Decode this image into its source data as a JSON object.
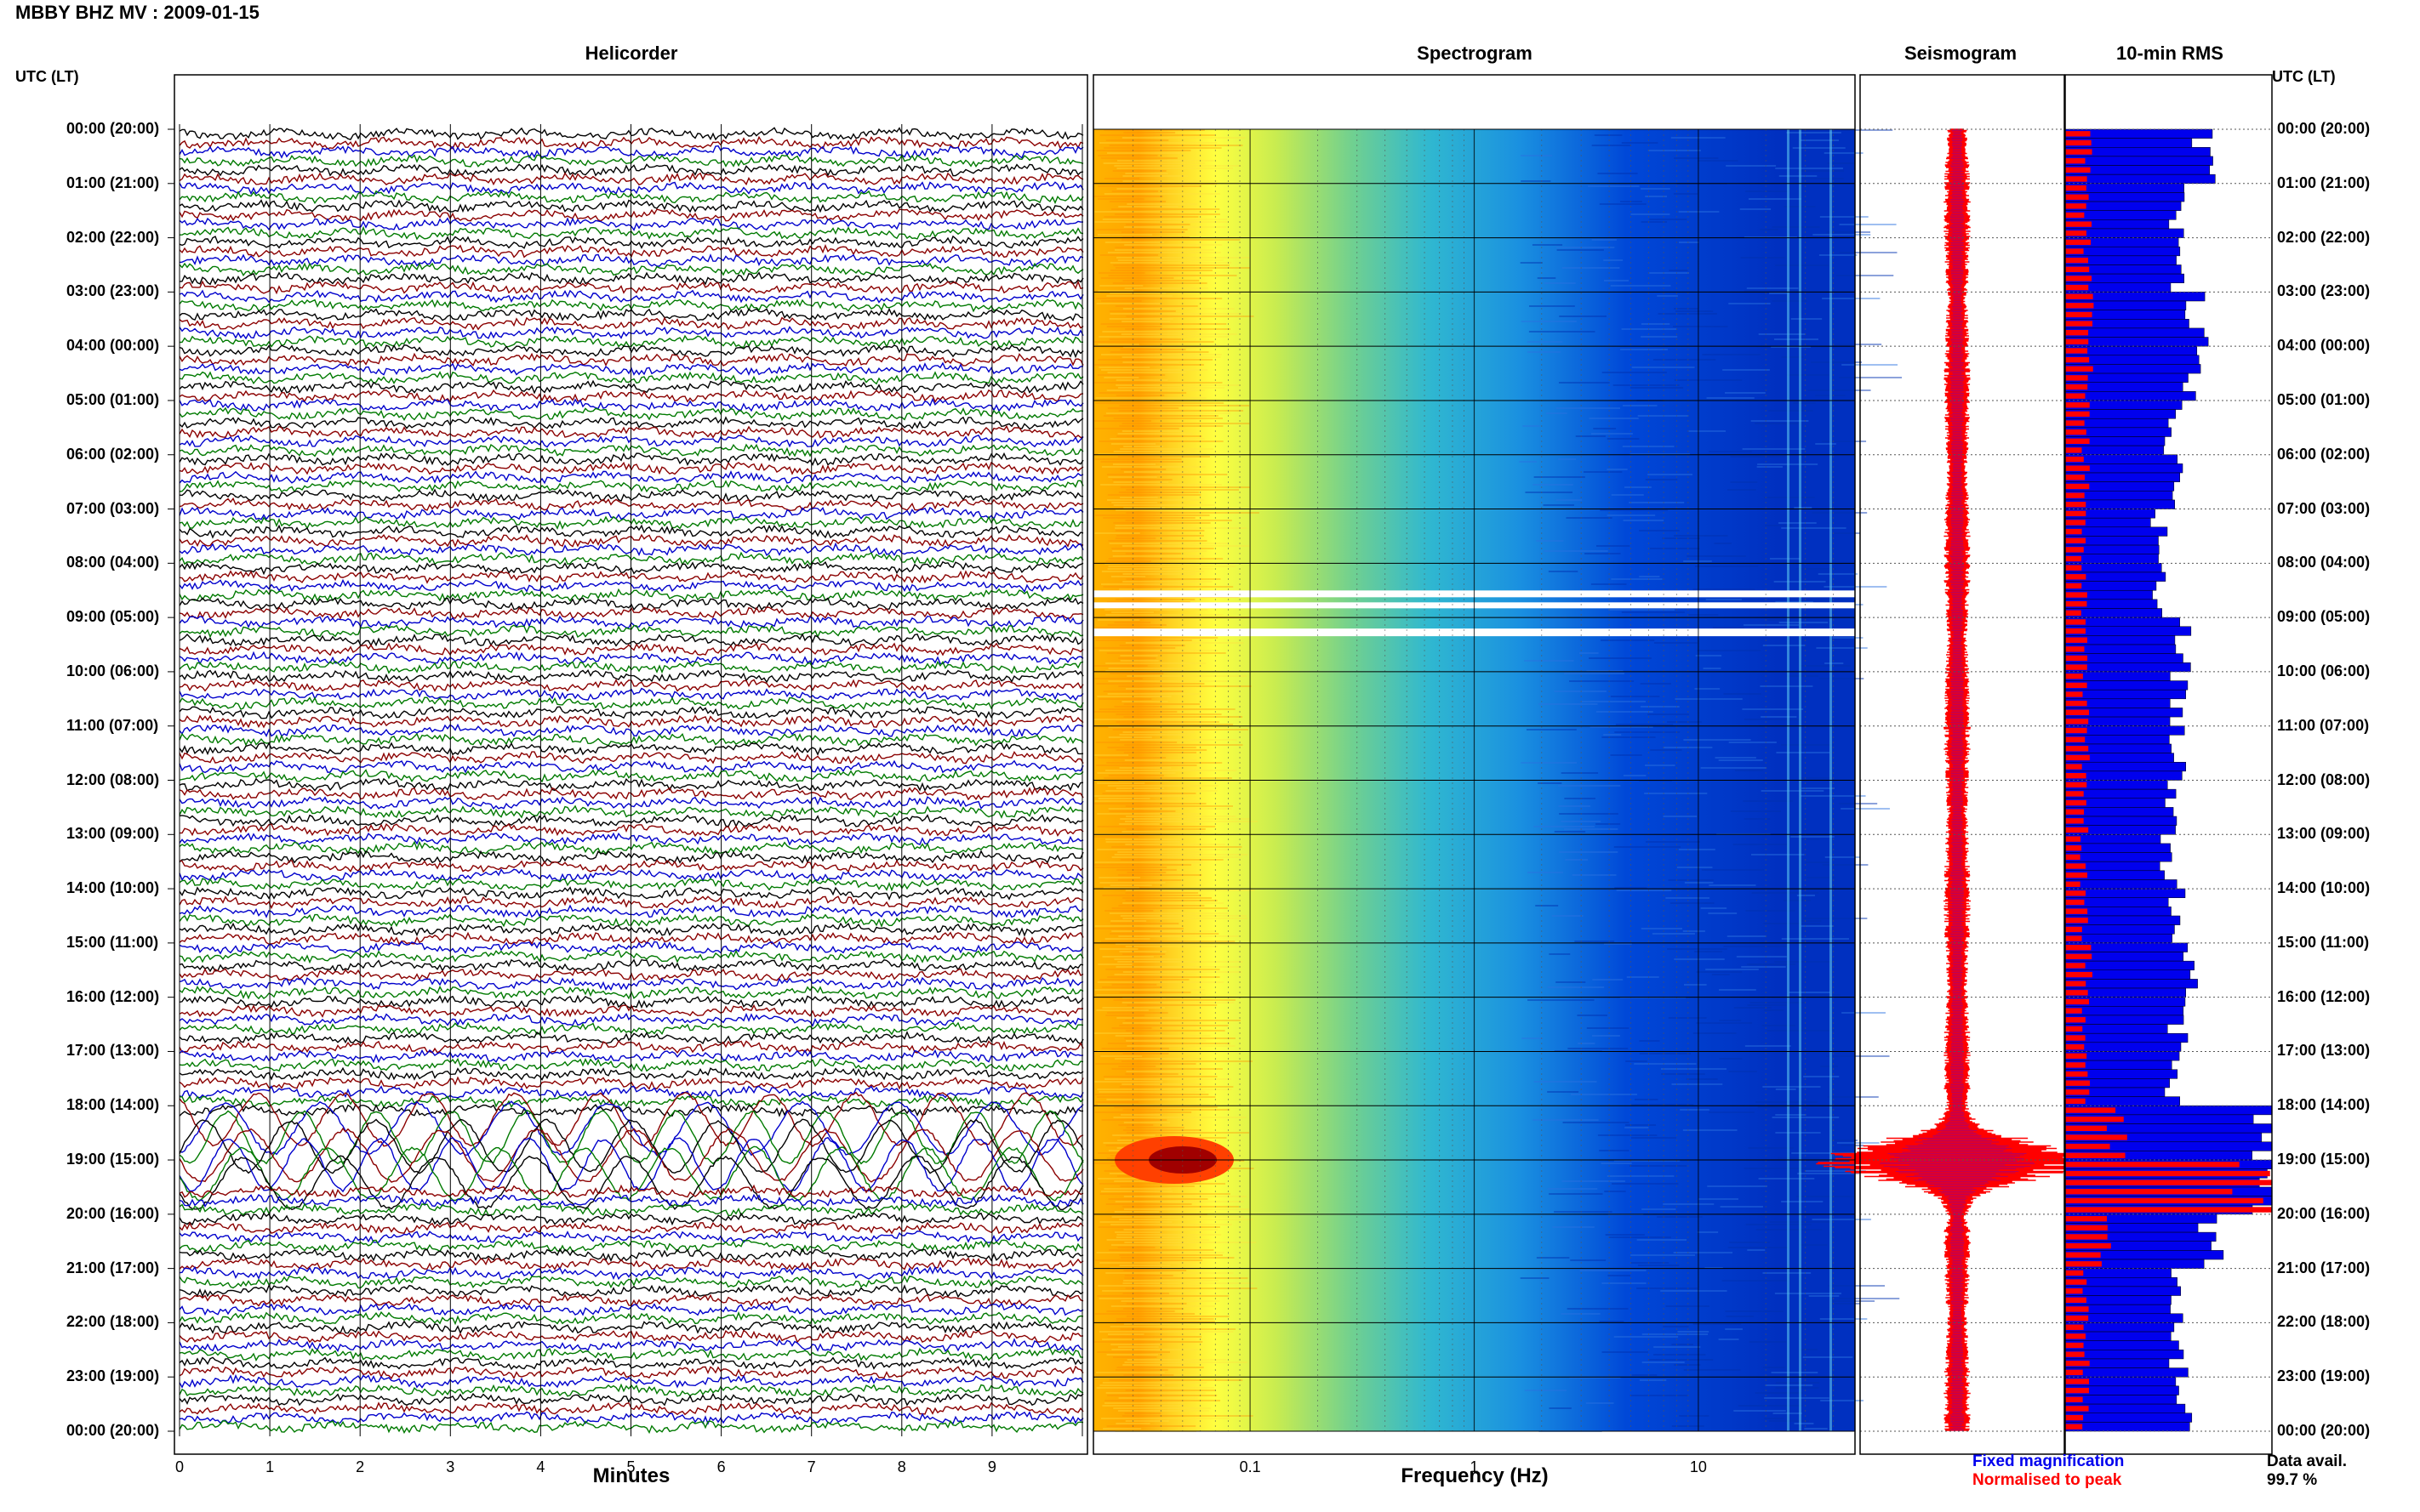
{
  "header": {
    "title": "MBBY BHZ MV : 2009-01-15"
  },
  "panels": {
    "helicorder": "Helicorder",
    "spectrogram": "Spectrogram",
    "seismogram": "Seismogram",
    "rms": "10-min RMS"
  },
  "utc_header": "UTC (LT)",
  "chart_data": [
    {
      "type": "line",
      "title": "Helicorder",
      "xlabel": "Minutes",
      "xlim": [
        0,
        10
      ],
      "x_ticks": [
        "0",
        "1",
        "2",
        "3",
        "4",
        "5",
        "6",
        "7",
        "8",
        "9"
      ],
      "row_labels": [
        "00:00 (20:00)",
        "01:00 (21:00)",
        "02:00 (22:00)",
        "03:00 (23:00)",
        "04:00 (00:00)",
        "05:00 (01:00)",
        "06:00 (02:00)",
        "07:00 (03:00)",
        "08:00 (04:00)",
        "09:00 (05:00)",
        "10:00 (06:00)",
        "11:00 (07:00)",
        "12:00 (08:00)",
        "13:00 (09:00)",
        "14:00 (10:00)",
        "15:00 (11:00)",
        "16:00 (12:00)",
        "17:00 (13:00)",
        "18:00 (14:00)",
        "19:00 (15:00)",
        "20:00 (16:00)",
        "21:00 (17:00)",
        "22:00 (18:00)",
        "23:00 (19:00)",
        "00:00 (20:00)"
      ],
      "traces_per_hour": 6,
      "trace_colors": [
        "#000000",
        "#8b0000",
        "#0000cc",
        "#007a00"
      ],
      "event_hour": 19
    },
    {
      "type": "heatmap",
      "title": "Spectrogram",
      "xlabel": "Frequency (Hz)",
      "x_scale": "log",
      "x_ticks": [
        "0.1",
        "1",
        "10"
      ],
      "xlim": [
        0.02,
        50
      ],
      "colormap": [
        "#8b0000",
        "#ff4000",
        "#ffa500",
        "#ffd700",
        "#ffff40",
        "#a0e060",
        "#30c0c0",
        "#0090e0",
        "#0040d0",
        "#000090"
      ]
    },
    {
      "type": "line",
      "title": "Seismogram",
      "series": [
        {
          "name": "Fixed magnification",
          "color": "#0000ee"
        },
        {
          "name": "Normalised to peak",
          "color": "#ff0000"
        }
      ]
    },
    {
      "type": "bar",
      "title": "10-min RMS",
      "colors": {
        "fixed": "#0000ee",
        "normalised": "#ff0000"
      },
      "blue_rms_per_hour": [
        0.66,
        0.55,
        0.54,
        0.63,
        0.6,
        0.52,
        0.53,
        0.45,
        0.45,
        0.58,
        0.54,
        0.54,
        0.52,
        0.5,
        0.53,
        0.62,
        0.54,
        0.52,
        1.0,
        1.0,
        0.71,
        0.56,
        0.55,
        0.56,
        0.56
      ],
      "red_rms_per_hour": [
        0.12,
        0.11,
        0.11,
        0.13,
        0.12,
        0.1,
        0.1,
        0.09,
        0.09,
        0.11,
        0.1,
        0.1,
        0.1,
        0.09,
        0.1,
        0.12,
        0.1,
        0.1,
        0.25,
        1.0,
        0.2,
        0.1,
        0.1,
        0.1,
        0.1
      ]
    }
  ],
  "legend": {
    "fixed": "Fixed magnification",
    "normalised": "Normalised to peak"
  },
  "data_avail": {
    "label": "Data avail.",
    "value": "99.7 %"
  }
}
